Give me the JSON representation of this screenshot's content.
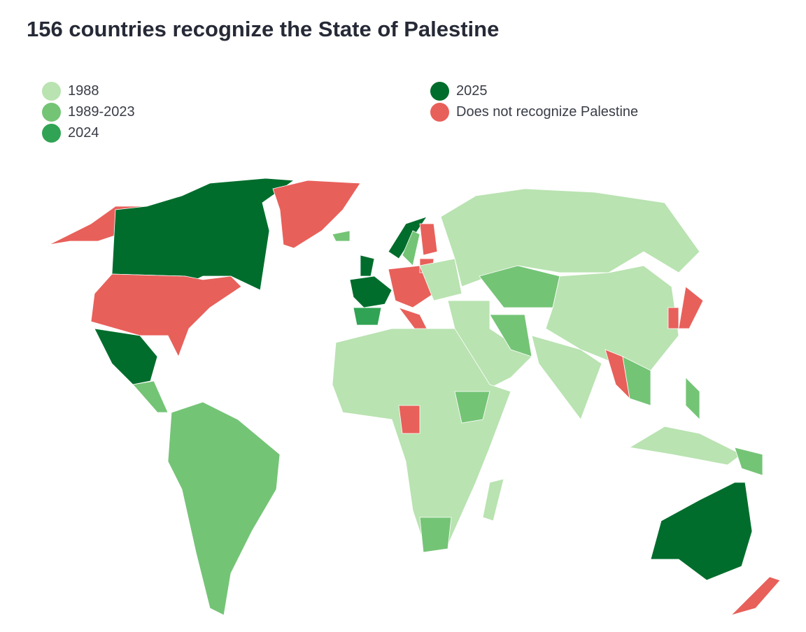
{
  "header": {
    "title": "156 countries recognize the State of Palestine"
  },
  "legend": [
    {
      "label": "1988",
      "color": "#b9e3b1"
    },
    {
      "label": "1989-2023",
      "color": "#74c476"
    },
    {
      "label": "2024",
      "color": "#31a354"
    },
    {
      "label": "2025",
      "color": "#006d2c"
    },
    {
      "label": "Does not recognize Palestine",
      "color": "#e8605a"
    }
  ]
}
